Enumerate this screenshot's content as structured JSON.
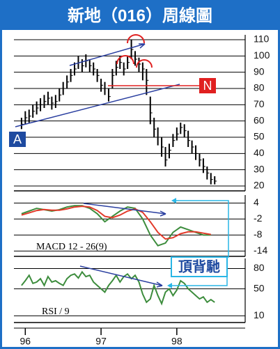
{
  "chart_data": [
    {
      "type": "hlc",
      "title": "新地（016）周線圖",
      "color": "#000000",
      "x": [
        95.95,
        96.0,
        96.05,
        96.1,
        96.15,
        96.2,
        96.25,
        96.3,
        96.35,
        96.4,
        96.45,
        96.5,
        96.55,
        96.6,
        96.65,
        96.7,
        96.75,
        96.8,
        96.85,
        96.9,
        96.95,
        97.0,
        97.05,
        97.1,
        97.15,
        97.2,
        97.25,
        97.3,
        97.35,
        97.4,
        97.45,
        97.5,
        97.55,
        97.6,
        97.65,
        97.7,
        97.75,
        97.8,
        97.85,
        97.9,
        97.95,
        98.0,
        98.05,
        98.1,
        98.15,
        98.2,
        98.25,
        98.3,
        98.35,
        98.4,
        98.45,
        98.5
      ],
      "high": [
        62,
        66,
        67,
        70,
        72,
        74,
        76,
        78,
        75,
        76,
        80,
        84,
        88,
        92,
        96,
        100,
        98,
        101,
        98,
        96,
        92,
        86,
        84,
        80,
        92,
        97,
        100,
        96,
        100,
        110,
        103,
        99,
        96,
        92,
        75,
        62,
        56,
        50,
        44,
        46,
        52,
        56,
        59,
        58,
        54,
        48,
        45,
        40,
        37,
        32,
        28,
        26
      ],
      "low": [
        55,
        58,
        59,
        62,
        64,
        66,
        68,
        70,
        67,
        68,
        72,
        76,
        80,
        84,
        88,
        92,
        90,
        93,
        90,
        88,
        84,
        78,
        76,
        72,
        80,
        88,
        92,
        88,
        92,
        98,
        94,
        90,
        85,
        76,
        58,
        50,
        45,
        38,
        32,
        37,
        44,
        48,
        52,
        50,
        44,
        40,
        36,
        32,
        28,
        24,
        21,
        21
      ],
      "close": [
        58,
        62,
        63,
        66,
        68,
        70,
        72,
        74,
        71,
        72,
        76,
        80,
        84,
        88,
        92,
        96,
        94,
        97,
        94,
        92,
        88,
        82,
        80,
        75,
        88,
        93,
        96,
        92,
        96,
        104,
        98,
        95,
        92,
        85,
        65,
        55,
        50,
        44,
        36,
        42,
        48,
        52,
        56,
        54,
        48,
        44,
        40,
        36,
        32,
        28,
        24,
        23
      ],
      "ylim": [
        17,
        113
      ],
      "yticks": [
        20,
        30,
        40,
        50,
        60,
        70,
        80,
        90,
        100,
        110
      ],
      "xlim": [
        95.85,
        98.93
      ],
      "xticks": [
        96,
        97,
        98
      ],
      "grid": true,
      "annotations": [
        "A",
        "N"
      ]
    },
    {
      "type": "line",
      "label": "MACD 12 - 26(9)",
      "annotations": [
        "頂背馳"
      ],
      "x": [
        95.95,
        96.05,
        96.15,
        96.25,
        96.35,
        96.45,
        96.55,
        96.65,
        96.75,
        96.85,
        96.95,
        97.05,
        97.15,
        97.25,
        97.35,
        97.45,
        97.55,
        97.65,
        97.75,
        97.85,
        97.95,
        98.05,
        98.15,
        98.25,
        98.35,
        98.45
      ],
      "series": [
        {
          "color": "#3c8c3c",
          "values": [
            0,
            1,
            2,
            1.5,
            1,
            1.5,
            2.5,
            3,
            3,
            2,
            0,
            -3,
            -1,
            1,
            2.5,
            2,
            -2,
            -8,
            -12,
            -11,
            -7,
            -5,
            -6,
            -7,
            -8,
            -8
          ]
        },
        {
          "color": "#e23a2a",
          "values": [
            -0.5,
            0.3,
            1.2,
            1.6,
            1.3,
            1.3,
            1.8,
            2.5,
            2.8,
            2.5,
            1.2,
            -1,
            -1.5,
            -0.5,
            1,
            1.8,
            0.5,
            -3,
            -7,
            -9.5,
            -9,
            -7.5,
            -6.8,
            -6.8,
            -7.3,
            -7.8
          ]
        }
      ],
      "ylim": [
        -16,
        7
      ],
      "yticks": [
        4,
        -2,
        -8,
        -14
      ],
      "xlim": [
        95.85,
        98.93
      ],
      "grid": true
    },
    {
      "type": "line",
      "label": "RSI / 9",
      "x": [
        95.95,
        96.0,
        96.05,
        96.1,
        96.15,
        96.2,
        96.25,
        96.3,
        96.35,
        96.4,
        96.45,
        96.5,
        96.55,
        96.6,
        96.65,
        96.7,
        96.75,
        96.8,
        96.85,
        96.9,
        96.95,
        97.0,
        97.05,
        97.1,
        97.15,
        97.2,
        97.25,
        97.3,
        97.35,
        97.4,
        97.45,
        97.5,
        97.55,
        97.6,
        97.65,
        97.7,
        97.75,
        97.8,
        97.85,
        97.9,
        97.95,
        98.0,
        98.05,
        98.1,
        98.15,
        98.2,
        98.25,
        98.3,
        98.35,
        98.4,
        98.45,
        98.5
      ],
      "series": [
        {
          "color": "#3c8c3c",
          "values": [
            55,
            62,
            70,
            58,
            60,
            65,
            55,
            68,
            60,
            62,
            58,
            55,
            65,
            70,
            72,
            66,
            75,
            68,
            70,
            60,
            55,
            50,
            45,
            55,
            62,
            70,
            60,
            68,
            72,
            65,
            70,
            60,
            42,
            30,
            35,
            55,
            40,
            28,
            45,
            50,
            40,
            48,
            62,
            58,
            50,
            45,
            40,
            35,
            38,
            30,
            34,
            30
          ]
        }
      ],
      "ylim": [
        0,
        95
      ],
      "yticks": [
        80,
        50,
        10
      ],
      "xlim": [
        95.85,
        98.93
      ],
      "xticks": [
        96,
        97,
        98
      ],
      "grid": true
    }
  ]
}
